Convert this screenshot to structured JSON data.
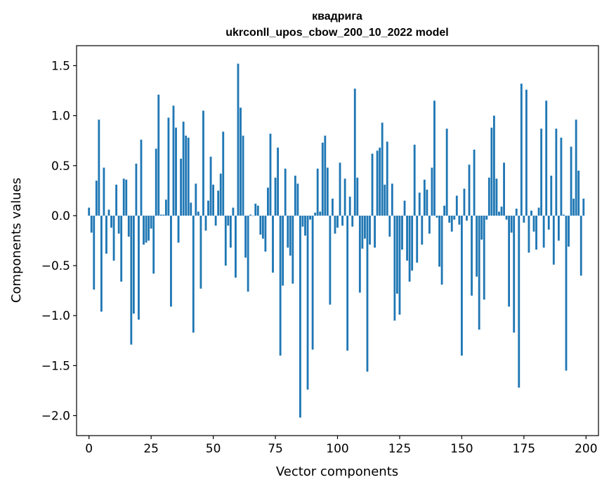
{
  "chart_data": {
    "type": "bar",
    "title_line1": "квадрига",
    "title_line2": "ukrconll_upos_cbow_200_10_2022 model",
    "xlabel": "Vector components",
    "ylabel": "Components values",
    "xlim": [
      -5,
      205
    ],
    "ylim": [
      -2.2,
      1.7
    ],
    "x_ticks": [
      0,
      25,
      50,
      75,
      100,
      125,
      150,
      175,
      200
    ],
    "x_tick_labels": [
      "0",
      "25",
      "50",
      "75",
      "100",
      "125",
      "150",
      "175",
      "200"
    ],
    "y_ticks": [
      1.5,
      1.0,
      0.5,
      0.0,
      -0.5,
      -1.0,
      -1.5,
      -2.0
    ],
    "y_tick_labels": [
      "1.5",
      "1.0",
      "0.5",
      "0.0",
      "−0.5",
      "−1.0",
      "−1.5",
      "−2.0"
    ],
    "bar_color": "#1f77b4",
    "values": [
      0.08,
      -0.17,
      -0.74,
      0.35,
      0.96,
      -0.96,
      0.48,
      -0.38,
      0.06,
      -0.12,
      -0.45,
      0.31,
      -0.18,
      -0.66,
      0.37,
      0.36,
      -0.21,
      -1.29,
      -0.98,
      0.52,
      -1.04,
      0.76,
      -0.29,
      -0.27,
      -0.25,
      -0.13,
      -0.58,
      0.67,
      1.21,
      0.01,
      0.01,
      0.16,
      0.98,
      -0.91,
      1.1,
      0.88,
      -0.27,
      0.57,
      0.94,
      0.8,
      0.78,
      0.13,
      -1.17,
      0.32,
      0.04,
      -0.73,
      1.05,
      -0.15,
      0.15,
      0.59,
      0.31,
      -0.1,
      0.25,
      0.42,
      0.84,
      -0.5,
      -0.1,
      -0.32,
      0.08,
      -0.62,
      1.52,
      1.08,
      0.8,
      -0.42,
      -0.76,
      0.01,
      0.0,
      0.12,
      0.1,
      -0.19,
      -0.23,
      -0.36,
      0.28,
      0.82,
      -0.57,
      0.38,
      0.68,
      -1.4,
      -0.7,
      0.47,
      -0.32,
      -0.4,
      -0.68,
      0.4,
      0.32,
      -2.02,
      -0.11,
      -0.2,
      -1.74,
      -0.04,
      -1.34,
      0.03,
      0.47,
      0.04,
      0.73,
      0.8,
      0.48,
      -0.89,
      0.17,
      -0.18,
      -0.12,
      0.53,
      -0.1,
      0.37,
      -1.35,
      0.19,
      -0.11,
      1.27,
      0.38,
      -0.77,
      -0.33,
      -0.23,
      -1.56,
      -0.29,
      0.62,
      -0.32,
      0.65,
      0.68,
      0.93,
      0.31,
      0.74,
      -0.21,
      0.32,
      -1.05,
      -0.78,
      -0.99,
      -0.34,
      0.15,
      -0.45,
      -0.66,
      -0.55,
      0.71,
      -0.47,
      0.23,
      -0.29,
      0.36,
      0.26,
      -0.18,
      0.48,
      1.15,
      -0.02,
      -0.51,
      -0.69,
      0.1,
      0.87,
      -0.07,
      -0.16,
      -0.04,
      0.2,
      -0.09,
      -1.4,
      0.27,
      -0.05,
      0.51,
      -0.8,
      0.66,
      -0.61,
      -1.14,
      -0.24,
      -0.84,
      -0.04,
      0.38,
      0.88,
      1.0,
      0.37,
      0.04,
      0.09,
      0.53,
      -0.04,
      -0.91,
      -0.17,
      -1.17,
      0.07,
      -1.72,
      1.32,
      -0.07,
      1.26,
      -0.37,
      0.05,
      -0.16,
      -0.34,
      0.08,
      0.87,
      -0.32,
      1.15,
      -0.14,
      0.4,
      -0.49,
      0.87,
      -0.25,
      0.78,
      0.01,
      -1.55,
      -0.31,
      0.69,
      0.17,
      0.96,
      0.45,
      -0.6,
      0.17
    ]
  }
}
